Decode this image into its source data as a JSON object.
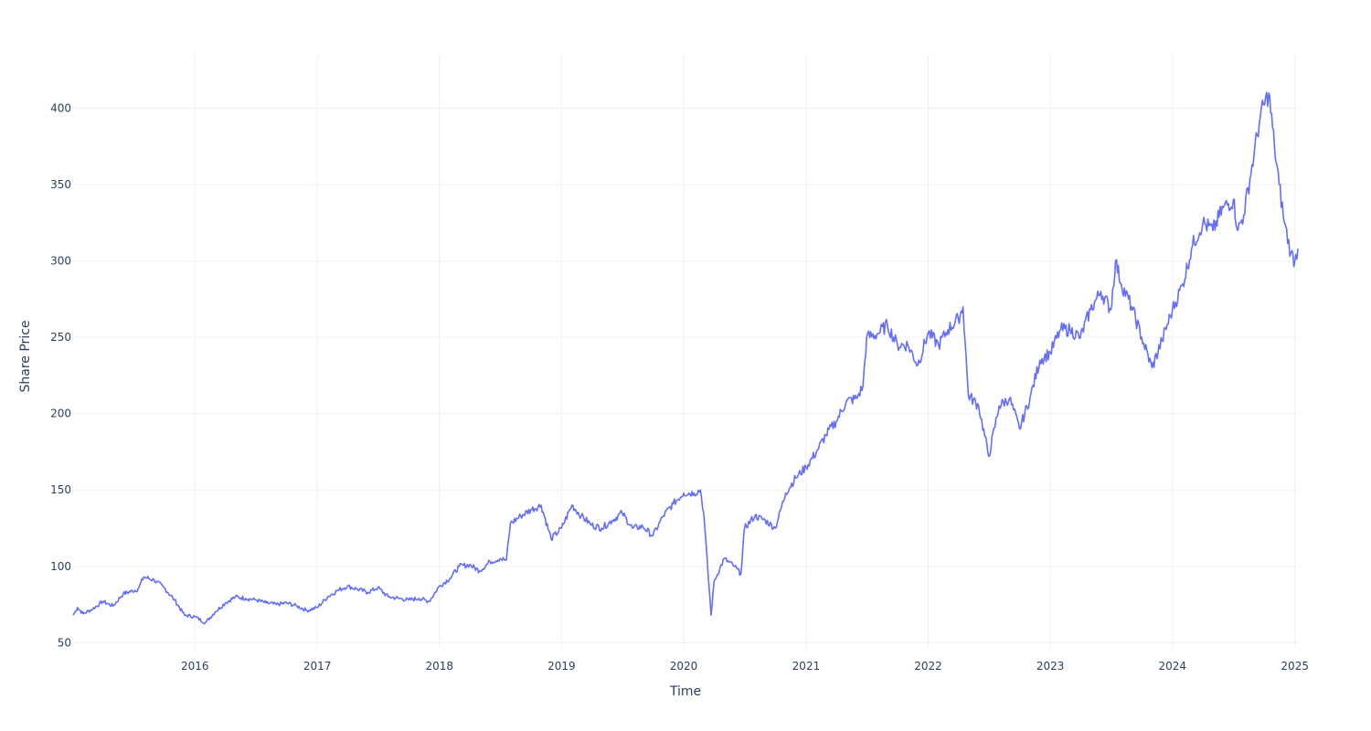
{
  "chart_data": {
    "type": "line",
    "title": "",
    "xlabel": "Time",
    "ylabel": "Share Price",
    "xlim": [
      "2015-01-02",
      "2025-01-10"
    ],
    "ylim": [
      46,
      435
    ],
    "x_ticks": [
      "2016",
      "2017",
      "2018",
      "2019",
      "2020",
      "2021",
      "2022",
      "2023",
      "2024",
      "2025"
    ],
    "y_ticks": [
      50,
      100,
      150,
      200,
      250,
      300,
      350,
      400
    ],
    "grid": true,
    "legend": "none",
    "series": [
      {
        "color": "#636efa",
        "points": [
          [
            "2015-01-02",
            68
          ],
          [
            "2015-01-15",
            73
          ],
          [
            "2015-02-01",
            69
          ],
          [
            "2015-03-01",
            72
          ],
          [
            "2015-04-01",
            77
          ],
          [
            "2015-05-01",
            74
          ],
          [
            "2015-06-01",
            82
          ],
          [
            "2015-07-15",
            85
          ],
          [
            "2015-08-01",
            93
          ],
          [
            "2015-09-01",
            91
          ],
          [
            "2015-10-01",
            86
          ],
          [
            "2015-11-01",
            78
          ],
          [
            "2015-12-01",
            68
          ],
          [
            "2016-01-01",
            67
          ],
          [
            "2016-02-01",
            63
          ],
          [
            "2016-03-01",
            70
          ],
          [
            "2016-04-01",
            76
          ],
          [
            "2016-05-01",
            80
          ],
          [
            "2016-06-01",
            79
          ],
          [
            "2016-07-01",
            78
          ],
          [
            "2016-08-01",
            76
          ],
          [
            "2016-09-01",
            75
          ],
          [
            "2016-10-01",
            76
          ],
          [
            "2016-11-01",
            74
          ],
          [
            "2016-12-01",
            71
          ],
          [
            "2017-01-01",
            73
          ],
          [
            "2017-02-01",
            80
          ],
          [
            "2017-03-01",
            84
          ],
          [
            "2017-04-01",
            87
          ],
          [
            "2017-05-01",
            85
          ],
          [
            "2017-06-01",
            83
          ],
          [
            "2017-07-01",
            86
          ],
          [
            "2017-08-01",
            80
          ],
          [
            "2017-09-01",
            79
          ],
          [
            "2017-10-01",
            78
          ],
          [
            "2017-11-01",
            79
          ],
          [
            "2017-12-01",
            77
          ],
          [
            "2018-01-01",
            87
          ],
          [
            "2018-02-01",
            92
          ],
          [
            "2018-03-01",
            100
          ],
          [
            "2018-04-01",
            101
          ],
          [
            "2018-05-01",
            97
          ],
          [
            "2018-06-01",
            103
          ],
          [
            "2018-07-01",
            105
          ],
          [
            "2018-07-20",
            104
          ],
          [
            "2018-08-01",
            128
          ],
          [
            "2018-09-01",
            133
          ],
          [
            "2018-10-01",
            137
          ],
          [
            "2018-11-01",
            140
          ],
          [
            "2018-12-01",
            118
          ],
          [
            "2019-01-01",
            125
          ],
          [
            "2019-02-01",
            140
          ],
          [
            "2019-03-01",
            133
          ],
          [
            "2019-04-01",
            127
          ],
          [
            "2019-05-01",
            125
          ],
          [
            "2019-06-01",
            130
          ],
          [
            "2019-07-01",
            135
          ],
          [
            "2019-08-01",
            125
          ],
          [
            "2019-09-01",
            126
          ],
          [
            "2019-10-01",
            120
          ],
          [
            "2019-11-01",
            133
          ],
          [
            "2019-12-01",
            141
          ],
          [
            "2020-01-01",
            148
          ],
          [
            "2020-02-01",
            148
          ],
          [
            "2020-02-20",
            150
          ],
          [
            "2020-03-01",
            135
          ],
          [
            "2020-03-23",
            68
          ],
          [
            "2020-04-01",
            90
          ],
          [
            "2020-05-01",
            105
          ],
          [
            "2020-06-01",
            100
          ],
          [
            "2020-06-20",
            95
          ],
          [
            "2020-07-01",
            125
          ],
          [
            "2020-08-01",
            133
          ],
          [
            "2020-09-01",
            130
          ],
          [
            "2020-10-01",
            125
          ],
          [
            "2020-11-01",
            148
          ],
          [
            "2020-12-01",
            158
          ],
          [
            "2021-01-01",
            165
          ],
          [
            "2021-02-01",
            175
          ],
          [
            "2021-03-01",
            186
          ],
          [
            "2021-04-01",
            195
          ],
          [
            "2021-05-01",
            208
          ],
          [
            "2021-06-01",
            210
          ],
          [
            "2021-06-20",
            218
          ],
          [
            "2021-07-01",
            250
          ],
          [
            "2021-08-01",
            252
          ],
          [
            "2021-09-01",
            258
          ],
          [
            "2021-10-01",
            245
          ],
          [
            "2021-11-01",
            245
          ],
          [
            "2021-12-01",
            232
          ],
          [
            "2022-01-01",
            253
          ],
          [
            "2022-02-01",
            245
          ],
          [
            "2022-03-01",
            255
          ],
          [
            "2022-04-01",
            262
          ],
          [
            "2022-04-15",
            270
          ],
          [
            "2022-05-01",
            212
          ],
          [
            "2022-06-01",
            205
          ],
          [
            "2022-07-01",
            172
          ],
          [
            "2022-08-01",
            205
          ],
          [
            "2022-09-01",
            210
          ],
          [
            "2022-10-01",
            190
          ],
          [
            "2022-11-01",
            210
          ],
          [
            "2022-12-01",
            235
          ],
          [
            "2023-01-01",
            240
          ],
          [
            "2023-02-01",
            255
          ],
          [
            "2023-03-01",
            255
          ],
          [
            "2023-04-01",
            250
          ],
          [
            "2023-05-01",
            268
          ],
          [
            "2023-06-01",
            280
          ],
          [
            "2023-07-01",
            268
          ],
          [
            "2023-07-15",
            300
          ],
          [
            "2023-08-01",
            285
          ],
          [
            "2023-09-01",
            270
          ],
          [
            "2023-10-01",
            250
          ],
          [
            "2023-11-01",
            230
          ],
          [
            "2023-12-01",
            248
          ],
          [
            "2024-01-01",
            268
          ],
          [
            "2024-02-01",
            285
          ],
          [
            "2024-03-01",
            310
          ],
          [
            "2024-04-01",
            325
          ],
          [
            "2024-05-01",
            320
          ],
          [
            "2024-06-01",
            335
          ],
          [
            "2024-07-01",
            340
          ],
          [
            "2024-07-15",
            320
          ],
          [
            "2024-08-01",
            330
          ],
          [
            "2024-09-01",
            370
          ],
          [
            "2024-09-20",
            395
          ],
          [
            "2024-10-15",
            410
          ],
          [
            "2024-11-01",
            375
          ],
          [
            "2024-11-15",
            350
          ],
          [
            "2024-12-01",
            325
          ],
          [
            "2024-12-20",
            305
          ],
          [
            "2025-01-01",
            300
          ],
          [
            "2025-01-10",
            308
          ]
        ]
      }
    ]
  }
}
